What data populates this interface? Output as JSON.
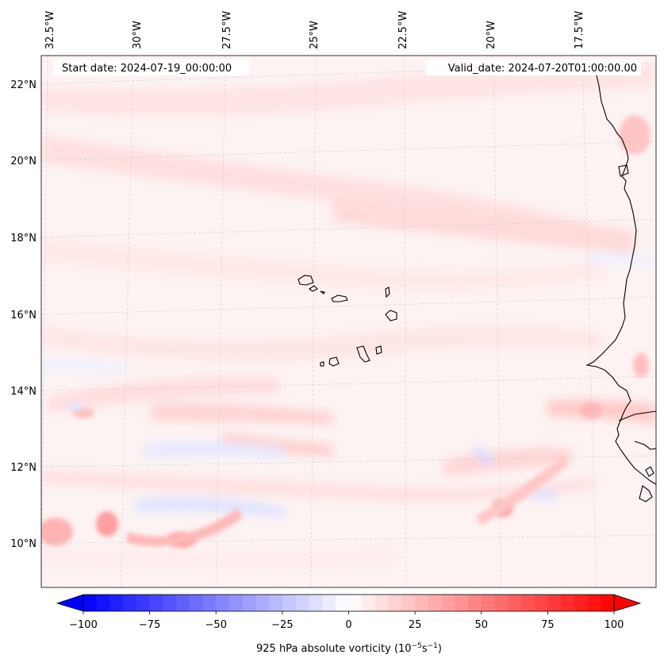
{
  "header": {
    "start_date": "Start date: 2024-07-19_00:00:00",
    "valid_date": "Valid_date: 2024-07-20T01:00:00.00"
  },
  "map": {
    "projection": "lambert-conformal",
    "lon_ticks": [
      "32.5°W",
      "30°W",
      "27.5°W",
      "25°W",
      "22.5°W",
      "20°W",
      "17.5°W"
    ],
    "lat_ticks": [
      "22°N",
      "20°N",
      "18°N",
      "16°N",
      "14°N",
      "12°N",
      "10°N"
    ],
    "lon_range": [
      -33,
      -15.5
    ],
    "lat_range": [
      9,
      22.8
    ],
    "gridlines": true,
    "features": [
      "Cabo Verde islands",
      "West African coastline"
    ]
  },
  "colorbar": {
    "label_main": "925 hPa absolute vorticity (10",
    "label_exp1": "−5",
    "label_mid": "s",
    "label_exp2": "−1",
    "label_end": ")",
    "min": -100,
    "max": 100,
    "ticks": [
      "−100",
      "−75",
      "−50",
      "−25",
      "0",
      "25",
      "50",
      "75",
      "100"
    ],
    "extend": "both",
    "colormap": "bwr",
    "color_min": "#0000ff",
    "color_mid": "#ffffff",
    "color_max": "#ff0000"
  }
}
